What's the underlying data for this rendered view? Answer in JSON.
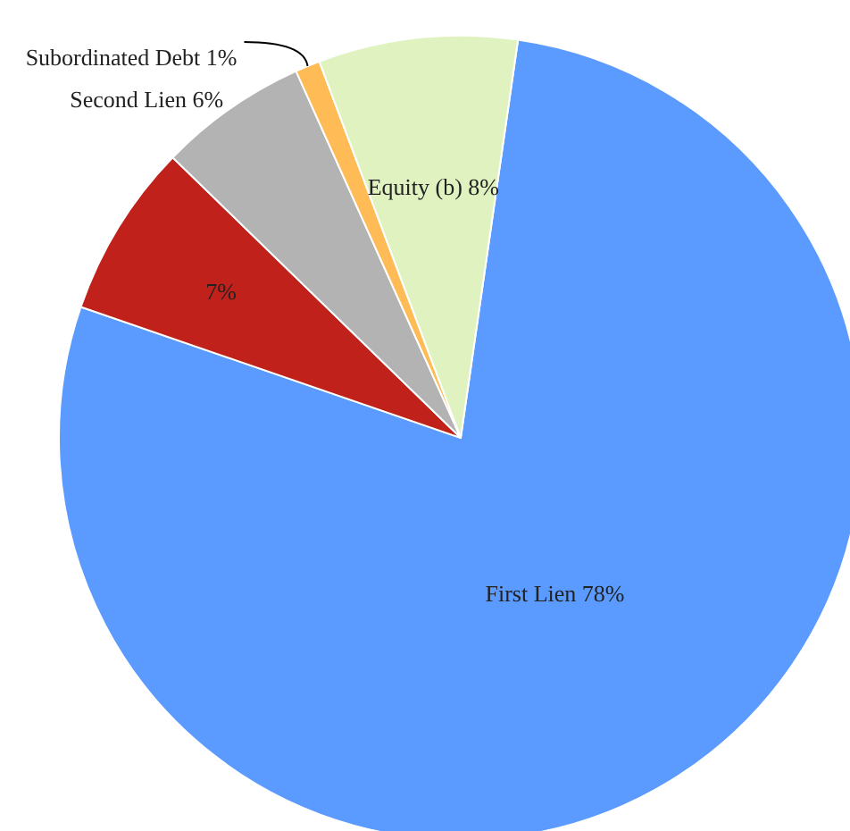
{
  "chart_data": {
    "type": "pie",
    "categories": [
      "First Lien",
      null,
      "Second Lien",
      "Subordinated Debt",
      "Equity (b)"
    ],
    "values": [
      78,
      7,
      6,
      1,
      8
    ],
    "colors": [
      "#5b9bff",
      "#c0211a",
      "#b3b3b3",
      "#ffbb55",
      "#dff2c0"
    ],
    "value_labels": [
      "78%",
      "7%",
      "6%",
      "1%",
      "8%"
    ],
    "legend": false
  }
}
